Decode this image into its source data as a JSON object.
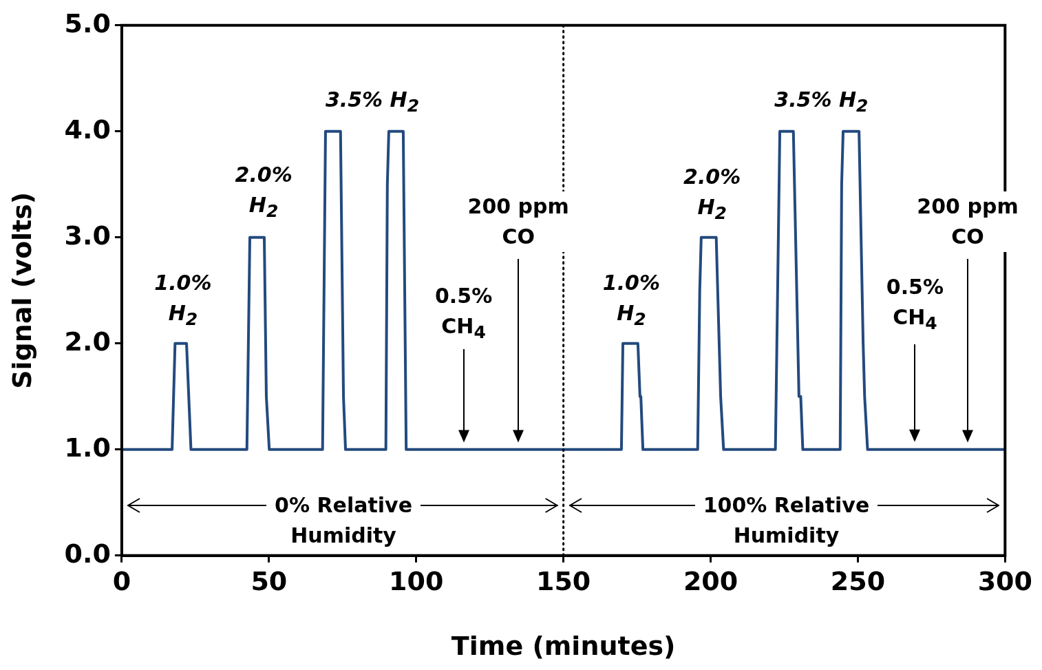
{
  "chart_data": {
    "type": "line",
    "xlabel": "Time (minutes)",
    "ylabel": "Signal (volts)",
    "xlim": [
      0,
      300
    ],
    "xticks": [
      0,
      50,
      100,
      150,
      200,
      250,
      300
    ],
    "ylim": [
      0,
      5
    ],
    "yticks": [
      {
        "value": 0,
        "label": "0.0"
      },
      {
        "value": 1,
        "label": "1.0"
      },
      {
        "value": 2,
        "label": "2.0"
      },
      {
        "value": 3,
        "label": "3.0"
      },
      {
        "value": 4,
        "label": "4.0"
      },
      {
        "value": 5,
        "label": "5.0"
      }
    ],
    "grid": false,
    "legend": false,
    "marker": "none",
    "line_style": "solid",
    "series": [
      {
        "color": "#234a7e",
        "x": [
          0,
          17.1,
          18.1,
          22.0,
          23.5,
          42.5,
          43.5,
          48.4,
          49.1,
          50.1,
          68.2,
          69.2,
          74.3,
          75.3,
          76.0,
          89.7,
          90.2,
          90.7,
          95.6,
          96.6,
          169.7,
          170.2,
          175.3,
          176.0,
          176.3,
          177.0,
          195.6,
          196.3,
          196.8,
          201.9,
          203.4,
          204.4,
          222.0,
          223.5,
          228.1,
          230.0,
          230.6,
          231.3,
          244.0,
          244.5,
          245.0,
          250.4,
          251.8,
          252.3,
          253.3,
          300
        ],
        "values": [
          1,
          1,
          2,
          2,
          1,
          1,
          3,
          3,
          1.5,
          1,
          1,
          4,
          4,
          1.5,
          1,
          1,
          3.5,
          4,
          4,
          1,
          1,
          2,
          2,
          1.5,
          1.5,
          1,
          1,
          2.5,
          3,
          3,
          1.5,
          1,
          1,
          4,
          4,
          1.5,
          1.5,
          1,
          1,
          3.5,
          4,
          4,
          2,
          1.5,
          1,
          1
        ]
      }
    ],
    "ref_lines": [
      {
        "axis": "x",
        "value": 150,
        "color": "#000000",
        "line_style": "dotted"
      }
    ],
    "annotations": [
      "1.0%\nH$_{2}$",
      "2.0%\nH$_{2}$",
      "3.5% H$_{2}$",
      "0.5%\nCH$_{4}$",
      "200 ppm\nCO",
      "0% Relative\nHumidity",
      "1.0%\nH$_{2}$",
      "2.0%\nH$_{2}$",
      "3.5% H$_{2}$",
      "0.5%\nCH$_{4}$",
      "200 ppm\nCO",
      "100% Relative\nHumidity"
    ]
  }
}
